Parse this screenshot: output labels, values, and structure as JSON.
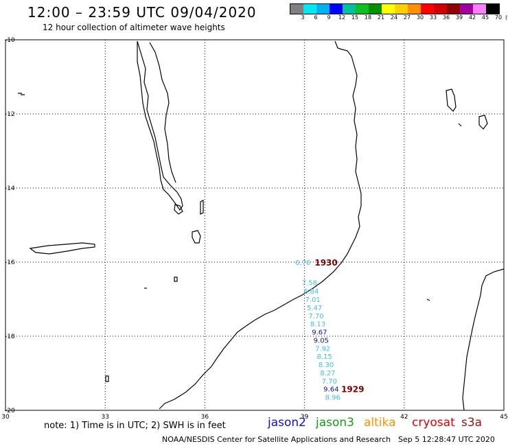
{
  "header": {
    "title": "12:00 – 23:59 UTC 09/04/2020",
    "subtitle": "12 hour collection of altimeter wave heights"
  },
  "legend": {
    "unit": "(ft)",
    "colors": [
      "#808080",
      "#00e8f0",
      "#00b0f0",
      "#0000ff",
      "#00c0a0",
      "#10c020",
      "#009000",
      "#ffff00",
      "#ffd000",
      "#ff9000",
      "#ff0000",
      "#d00000",
      "#900000",
      "#a000a0",
      "#ff80ff",
      "#000000"
    ],
    "labels": [
      "3",
      "6",
      "9",
      "12",
      "15",
      "18",
      "21",
      "24",
      "27",
      "30",
      "33",
      "36",
      "39",
      "42",
      "45",
      "70"
    ]
  },
  "map": {
    "lon_ticks": [
      "30",
      "33",
      "36",
      "39",
      "42",
      "45"
    ],
    "lat_ticks": [
      "-10",
      "-12",
      "-14",
      "-16",
      "-18",
      "-20"
    ]
  },
  "observations": [
    {
      "value": "6.76",
      "lon": 38.95,
      "lat": -16.0,
      "color": "#40c0e0"
    },
    {
      "value": "7.58",
      "lon": 39.15,
      "lat": -16.55,
      "color": "#40c0e0"
    },
    {
      "value": "6.84",
      "lon": 39.2,
      "lat": -16.78,
      "color": "#40c0e0"
    },
    {
      "value": "7.01",
      "lon": 39.25,
      "lat": -17.0,
      "color": "#40c0e0"
    },
    {
      "value": "5.47",
      "lon": 39.3,
      "lat": -17.22,
      "color": "#40c0e0"
    },
    {
      "value": "7.70",
      "lon": 39.35,
      "lat": -17.44,
      "color": "#40c0e0"
    },
    {
      "value": "8.13",
      "lon": 39.4,
      "lat": -17.66,
      "color": "#40c0e0"
    },
    {
      "value": "9.67",
      "lon": 39.45,
      "lat": -17.88,
      "color": "#1010a0"
    },
    {
      "value": "9.05",
      "lon": 39.5,
      "lat": -18.1,
      "color": "#1010a0"
    },
    {
      "value": "7.92",
      "lon": 39.55,
      "lat": -18.32,
      "color": "#40c0e0"
    },
    {
      "value": "8.15",
      "lon": 39.6,
      "lat": -18.54,
      "color": "#40c0e0"
    },
    {
      "value": "8.30",
      "lon": 39.65,
      "lat": -18.76,
      "color": "#40c0e0"
    },
    {
      "value": "8.27",
      "lon": 39.7,
      "lat": -18.98,
      "color": "#40c0e0"
    },
    {
      "value": "7.70",
      "lon": 39.75,
      "lat": -19.2,
      "color": "#40c0e0"
    },
    {
      "value": "9.64",
      "lon": 39.8,
      "lat": -19.42,
      "color": "#1010a0"
    },
    {
      "value": "8.96",
      "lon": 39.85,
      "lat": -19.64,
      "color": "#40c0e0"
    }
  ],
  "pass_times": [
    {
      "label": "1930",
      "lon": 39.65,
      "lat": -16.0
    },
    {
      "label": "1929",
      "lon": 40.45,
      "lat": -19.42
    }
  ],
  "footer": {
    "note": "note: 1) Time is in UTC; 2) SWH is in feet",
    "satellites": [
      {
        "name": "jason2",
        "color": "#1010d0"
      },
      {
        "name": "jason3",
        "color": "#10a010"
      },
      {
        "name": "altika",
        "color": "#ff9000"
      },
      {
        "name": "cryosat",
        "color": "#e00000"
      },
      {
        "name": "s3a",
        "color": "#a01010"
      }
    ],
    "credit": "NOAA/NESDIS Center for Satellite Applications and Research",
    "timestamp": "Sep 5 12:28:47 UTC 2020"
  }
}
